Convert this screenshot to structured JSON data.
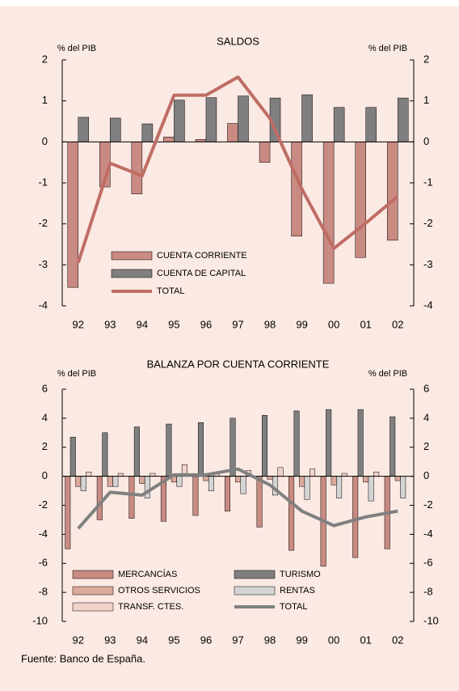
{
  "chart_data": [
    {
      "type": "bar",
      "title": "SALDOS",
      "ylabel": "% del PIB",
      "y2label": "% del PIB",
      "categories": [
        "92",
        "93",
        "94",
        "95",
        "96",
        "97",
        "98",
        "99",
        "00",
        "01",
        "02"
      ],
      "ylim": [
        -4,
        2
      ],
      "yticks": [
        -4,
        -3,
        -2,
        -1,
        0,
        1,
        2
      ],
      "y2lim": [
        -4,
        2
      ],
      "y2ticks": [
        -4,
        -3,
        -2,
        -1,
        0,
        1,
        2
      ],
      "series": [
        {
          "name": "CUENTA CORRIENTE",
          "color": "#c98a82",
          "type": "bar",
          "values": [
            -3.55,
            -1.1,
            -1.27,
            0.12,
            0.06,
            0.45,
            -0.5,
            -2.3,
            -3.45,
            -2.82,
            -2.4
          ]
        },
        {
          "name": "CUENTA DE CAPITAL",
          "color": "#7f7f7f",
          "type": "bar",
          "values": [
            0.6,
            0.58,
            0.44,
            1.02,
            1.08,
            1.12,
            1.07,
            1.15,
            0.84,
            0.84,
            1.07
          ]
        },
        {
          "name": "TOTAL",
          "color": "#bf6d65",
          "type": "line",
          "values": [
            -2.95,
            -0.52,
            -0.83,
            1.14,
            1.14,
            1.58,
            0.57,
            -1.15,
            -2.6,
            -1.98,
            -1.33
          ]
        }
      ]
    },
    {
      "type": "bar",
      "title": "BALANZA POR CUENTA CORRIENTE",
      "ylabel": "% del PIB",
      "y2label": "% del PIB",
      "categories": [
        "92",
        "93",
        "94",
        "95",
        "96",
        "97",
        "98",
        "99",
        "00",
        "01",
        "02"
      ],
      "ylim": [
        -10,
        6
      ],
      "yticks": [
        -10,
        -8,
        -6,
        -4,
        -2,
        0,
        2,
        4,
        6
      ],
      "y2lim": [
        -10,
        6
      ],
      "y2ticks": [
        -10,
        -8,
        -6,
        -4,
        -2,
        0,
        2,
        4,
        6
      ],
      "series": [
        {
          "name": "MERCANCÍAS",
          "color": "#c98a82",
          "type": "bar",
          "values": [
            -5.0,
            -3.0,
            -2.9,
            -3.1,
            -2.7,
            -2.4,
            -3.5,
            -5.1,
            -6.2,
            -5.6,
            -5.0
          ]
        },
        {
          "name": "TURISMO",
          "color": "#7f7f7f",
          "type": "bar",
          "values": [
            2.7,
            3.0,
            3.4,
            3.6,
            3.7,
            4.0,
            4.2,
            4.5,
            4.6,
            4.6,
            4.1
          ]
        },
        {
          "name": "OTROS SERVICIOS",
          "color": "#dcaa9c",
          "type": "bar",
          "values": [
            -0.7,
            -0.7,
            -0.5,
            -0.4,
            -0.3,
            -0.4,
            -0.2,
            -0.7,
            -0.6,
            -0.4,
            -0.3
          ]
        },
        {
          "name": "RENTAS",
          "color": "#d4d4d4",
          "type": "bar",
          "values": [
            -1.0,
            -0.7,
            -1.5,
            -0.7,
            -1.0,
            -1.2,
            -1.3,
            -1.6,
            -1.5,
            -1.7,
            -1.5
          ]
        },
        {
          "name": "TRANSF. CTES.",
          "color": "#f2d3c9",
          "type": "bar",
          "values": [
            0.3,
            0.2,
            0.2,
            0.8,
            0.2,
            0.4,
            0.6,
            0.5,
            0.2,
            0.3,
            0.0
          ]
        },
        {
          "name": "TOTAL",
          "color": "#808080",
          "type": "line",
          "values": [
            -3.6,
            -1.1,
            -1.3,
            0.1,
            0.1,
            0.5,
            -0.6,
            -2.4,
            -3.4,
            -2.8,
            -2.4
          ]
        }
      ]
    }
  ],
  "source": "Fuente: Banco de España."
}
